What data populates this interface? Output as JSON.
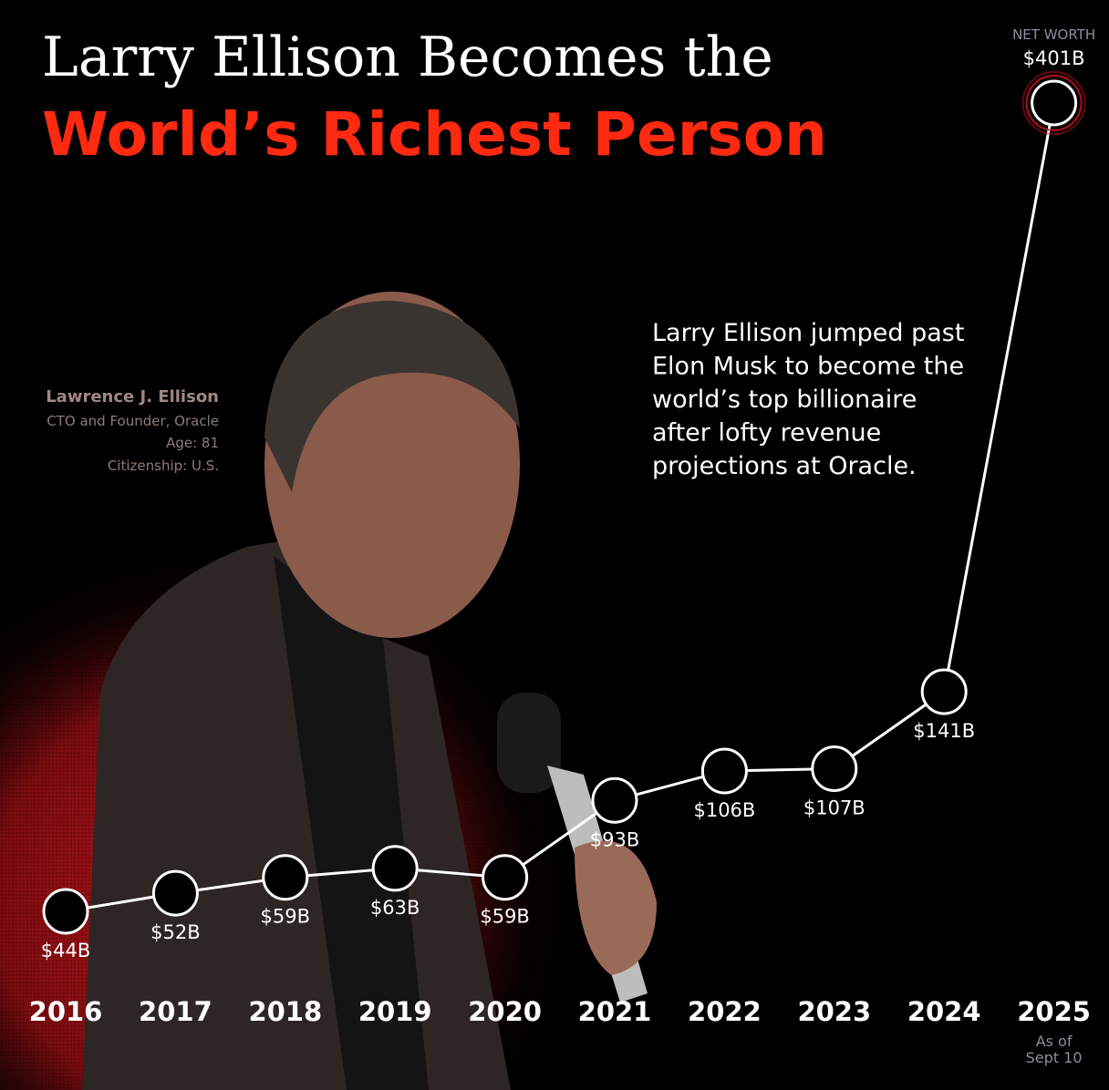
{
  "chart_data": {
    "type": "line",
    "title": "Larry Ellison Becomes the",
    "subtitle": "World’s Richest Person",
    "categories": [
      "2016",
      "2017",
      "2018",
      "2019",
      "2020",
      "2021",
      "2022",
      "2023",
      "2024",
      "2025"
    ],
    "category_note": [
      "As of",
      "Sept 10"
    ],
    "series": [
      {
        "name": "NET WORTH",
        "color": "#ffffff",
        "values": [
          44,
          52,
          59,
          63,
          59,
          93,
          106,
          107,
          141,
          401
        ],
        "value_labels": [
          "$44B",
          "$52B",
          "$59B",
          "$63B",
          "$59B",
          "$93B",
          "$106B",
          "$107B",
          "$141B",
          "$401B"
        ]
      }
    ],
    "annotation": [
      "Larry Ellison jumped past",
      "Elon Musk to become the",
      "world’s top billionaire",
      "after lofty revenue",
      "projections at Oracle."
    ],
    "profile": {
      "name": "Lawrence J. Ellison",
      "role": "CTO and Founder, Oracle",
      "age": "Age: 81",
      "citizenship": "Citizenship: U.S."
    }
  }
}
